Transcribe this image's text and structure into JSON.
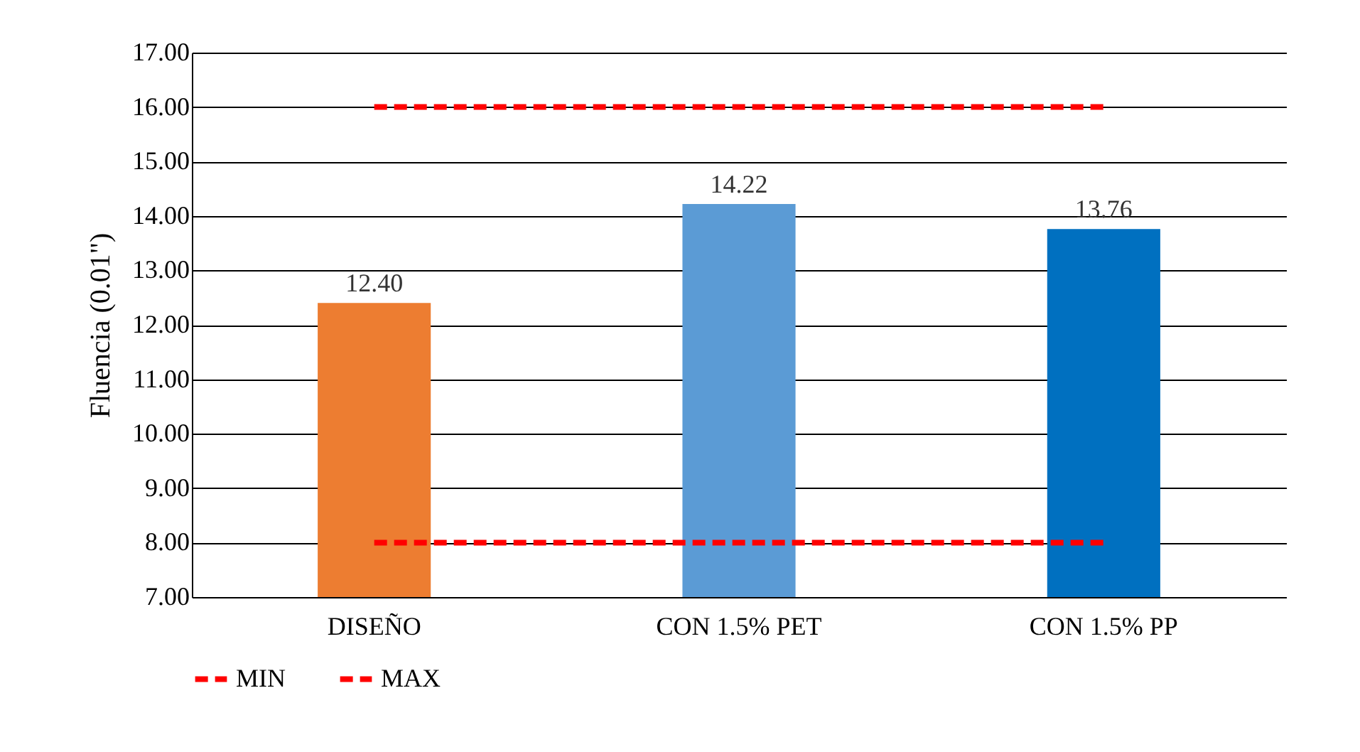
{
  "chart_data": {
    "type": "bar",
    "ylabel": "Fluencia (0.01\")",
    "categories": [
      "DISEÑO",
      "CON  1.5% PET",
      "CON 1.5% PP"
    ],
    "series": [
      {
        "colors": [
          "#ed7d31",
          "#5b9bd5",
          "#0070c0"
        ],
        "values": [
          12.4,
          14.22,
          13.76
        ],
        "value_labels": [
          "12.40",
          "14.22",
          "13.76"
        ]
      },
      {
        "type": "line",
        "name": "MIN",
        "color": "#ff0000",
        "line_style": "dashed",
        "values": [
          8,
          8,
          8
        ]
      },
      {
        "type": "line",
        "name": "MAX",
        "color": "#ff0000",
        "line_style": "dashed",
        "values": [
          16,
          16,
          16
        ]
      }
    ],
    "ylim": [
      7,
      17
    ],
    "yticks": [
      {
        "value": 7,
        "label": "7.00"
      },
      {
        "value": 8,
        "label": "8.00"
      },
      {
        "value": 9,
        "label": "9.00"
      },
      {
        "value": 10,
        "label": "10.00"
      },
      {
        "value": 11,
        "label": "11.00"
      },
      {
        "value": 12,
        "label": "12.00"
      },
      {
        "value": 13,
        "label": "13.00"
      },
      {
        "value": 14,
        "label": "14.00"
      },
      {
        "value": 15,
        "label": "15.00"
      },
      {
        "value": 16,
        "label": "16.00"
      },
      {
        "value": 17,
        "label": "17.00"
      }
    ],
    "grid": "y",
    "legend": "bottom",
    "marker": "none"
  }
}
